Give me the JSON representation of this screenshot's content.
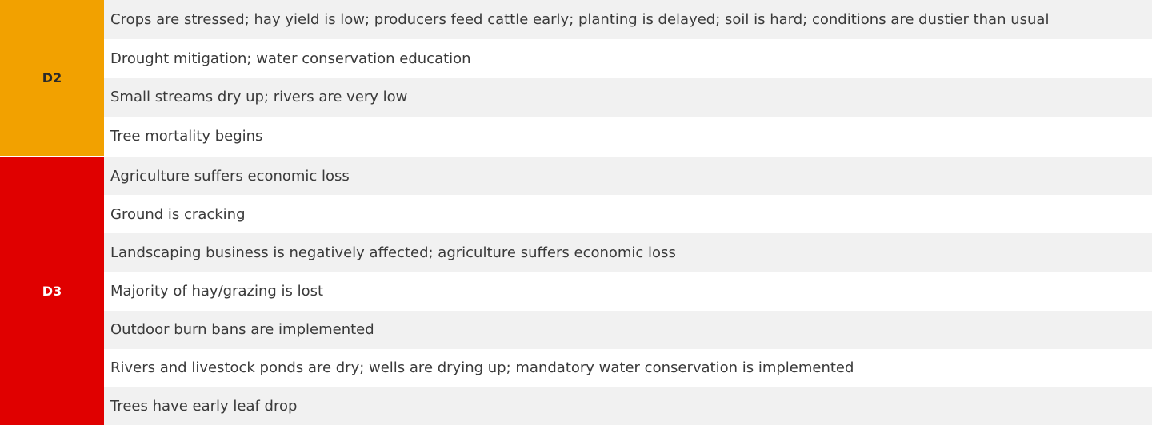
{
  "colors": {
    "d2_bg": "#f2a100",
    "d2_text": "#2a2a2a",
    "d3_bg": "#e00000",
    "d3_text": "#ffffff",
    "row_shade": "#f1f1f1",
    "row_plain": "#ffffff"
  },
  "groups": [
    {
      "category": "D2",
      "impacts": [
        "Crops are stressed; hay yield is low; producers feed cattle early; planting is delayed; soil is hard; conditions are dustier than usual",
        "Drought mitigation; water conservation education",
        "Small streams dry up; rivers are very low",
        "Tree mortality begins"
      ]
    },
    {
      "category": "D3",
      "impacts": [
        "Agriculture suffers economic loss",
        "Ground is cracking",
        "Landscaping business is negatively affected; agriculture suffers economic loss",
        "Majority of hay/grazing is lost",
        "Outdoor burn bans are implemented",
        "Rivers and livestock ponds are dry; wells are drying up; mandatory water conservation is implemented",
        "Trees have early leaf drop"
      ]
    }
  ]
}
